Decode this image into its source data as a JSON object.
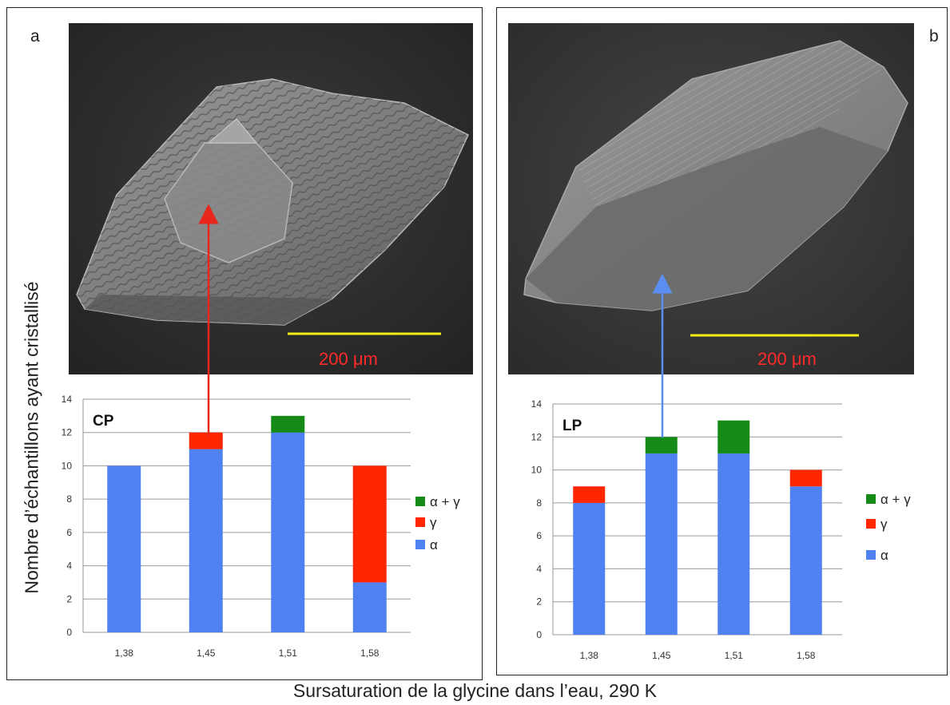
{
  "y_axis_label": "Nombre d’échantillons ayant cristallisé",
  "x_axis_label": "Sursaturation de la glycine dans l’eau, 290 K",
  "panels": [
    {
      "letter": "a",
      "scale_label": "200 μm"
    },
    {
      "letter": "b",
      "scale_label": "200 μm"
    }
  ],
  "colors": {
    "alpha": "#4f81f0",
    "gamma": "#ff2600",
    "alpha_gamma": "#168a16",
    "scale_bar": "#f2ec17",
    "scale_text": "#ff2a2a",
    "arrow_a": "#e8261a",
    "arrow_b": "#5b8ef0"
  },
  "chart_data": [
    {
      "type": "bar",
      "stacked": true,
      "title": "CP",
      "categories": [
        "1,38",
        "1,45",
        "1,51",
        "1,58"
      ],
      "ylim": [
        0,
        14
      ],
      "yticks": [
        0,
        2,
        4,
        6,
        8,
        10,
        12,
        14
      ],
      "grid": true,
      "legend_placement": "right",
      "series": [
        {
          "name": "α",
          "key": "alpha",
          "values": [
            10,
            11,
            12,
            3
          ]
        },
        {
          "name": "γ",
          "key": "gamma",
          "values": [
            0,
            1,
            0,
            7
          ]
        },
        {
          "name": "α + γ",
          "key": "alpha_gamma",
          "values": [
            0,
            0,
            1,
            0
          ]
        }
      ]
    },
    {
      "type": "bar",
      "stacked": true,
      "title": "LP",
      "categories": [
        "1,38",
        "1,45",
        "1,51",
        "1,58"
      ],
      "ylim": [
        0,
        14
      ],
      "yticks": [
        0,
        2,
        4,
        6,
        8,
        10,
        12,
        14
      ],
      "grid": true,
      "legend_placement": "right",
      "series": [
        {
          "name": "α",
          "key": "alpha",
          "values": [
            8,
            11,
            11,
            9
          ]
        },
        {
          "name": "γ",
          "key": "gamma",
          "values": [
            1,
            0,
            0,
            1
          ]
        },
        {
          "name": "α + γ",
          "key": "alpha_gamma",
          "values": [
            0,
            1,
            2,
            0
          ]
        }
      ]
    }
  ]
}
